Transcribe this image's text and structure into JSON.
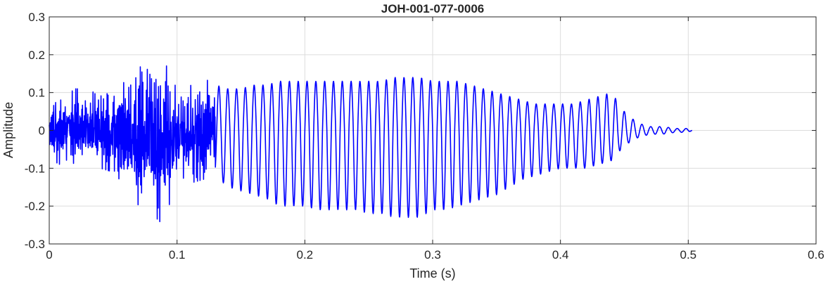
{
  "chart_data": {
    "type": "line",
    "title": "JOH-001-077-0006",
    "xlabel": "Time (s)",
    "ylabel": "Amplitude",
    "xlim": [
      0,
      0.6
    ],
    "ylim": [
      -0.3,
      0.3
    ],
    "grid": true,
    "x_ticks": [
      0,
      0.1,
      0.2,
      0.3,
      0.4,
      0.5,
      0.6
    ],
    "y_ticks": [
      -0.3,
      -0.2,
      -0.1,
      0,
      0.1,
      0.2,
      0.3
    ],
    "x_tick_labels": [
      "0",
      "0.1",
      "0.2",
      "0.3",
      "0.4",
      "0.5",
      "0.6"
    ],
    "y_tick_labels": [
      "-0.3",
      "-0.2",
      "-0.1",
      "0",
      "0.1",
      "0.2",
      "0.3"
    ],
    "series": [
      {
        "color": "#0000ff",
        "x": [
          0,
          0.01,
          0.02,
          0.03,
          0.04,
          0.05,
          0.06,
          0.07,
          0.075,
          0.08,
          0.085,
          0.09,
          0.1,
          0.11,
          0.12,
          0.13,
          0.14,
          0.15,
          0.16,
          0.17,
          0.18,
          0.19,
          0.2,
          0.21,
          0.22,
          0.23,
          0.24,
          0.25,
          0.26,
          0.27,
          0.28,
          0.29,
          0.3,
          0.31,
          0.32,
          0.33,
          0.34,
          0.35,
          0.36,
          0.37,
          0.38,
          0.39,
          0.4,
          0.41,
          0.42,
          0.43,
          0.44,
          0.45,
          0.46,
          0.47,
          0.48,
          0.49,
          0.5,
          0.503
        ],
        "ymax": [
          0.05,
          0.11,
          0.11,
          0.11,
          0.09,
          0.12,
          0.14,
          0.16,
          0.22,
          0.19,
          0.17,
          0.2,
          0.12,
          0.12,
          0.14,
          0.12,
          0.11,
          0.11,
          0.12,
          0.12,
          0.13,
          0.13,
          0.13,
          0.13,
          0.13,
          0.13,
          0.13,
          0.13,
          0.13,
          0.14,
          0.14,
          0.14,
          0.13,
          0.13,
          0.13,
          0.12,
          0.11,
          0.1,
          0.09,
          0.08,
          0.07,
          0.07,
          0.07,
          0.07,
          0.08,
          0.09,
          0.1,
          0.05,
          0.02,
          0.01,
          0.01,
          0.005,
          0.005,
          0.0
        ],
        "ymin": [
          -0.05,
          -0.11,
          -0.1,
          -0.1,
          -0.1,
          -0.11,
          -0.15,
          -0.2,
          -0.23,
          -0.21,
          -0.25,
          -0.22,
          -0.16,
          -0.14,
          -0.13,
          -0.12,
          -0.15,
          -0.16,
          -0.17,
          -0.18,
          -0.2,
          -0.2,
          -0.2,
          -0.21,
          -0.21,
          -0.21,
          -0.21,
          -0.22,
          -0.22,
          -0.23,
          -0.23,
          -0.23,
          -0.21,
          -0.21,
          -0.2,
          -0.19,
          -0.18,
          -0.17,
          -0.15,
          -0.13,
          -0.12,
          -0.11,
          -0.1,
          -0.1,
          -0.1,
          -0.09,
          -0.08,
          -0.04,
          -0.02,
          -0.01,
          -0.01,
          -0.005,
          -0.005,
          0.0
        ]
      }
    ]
  }
}
